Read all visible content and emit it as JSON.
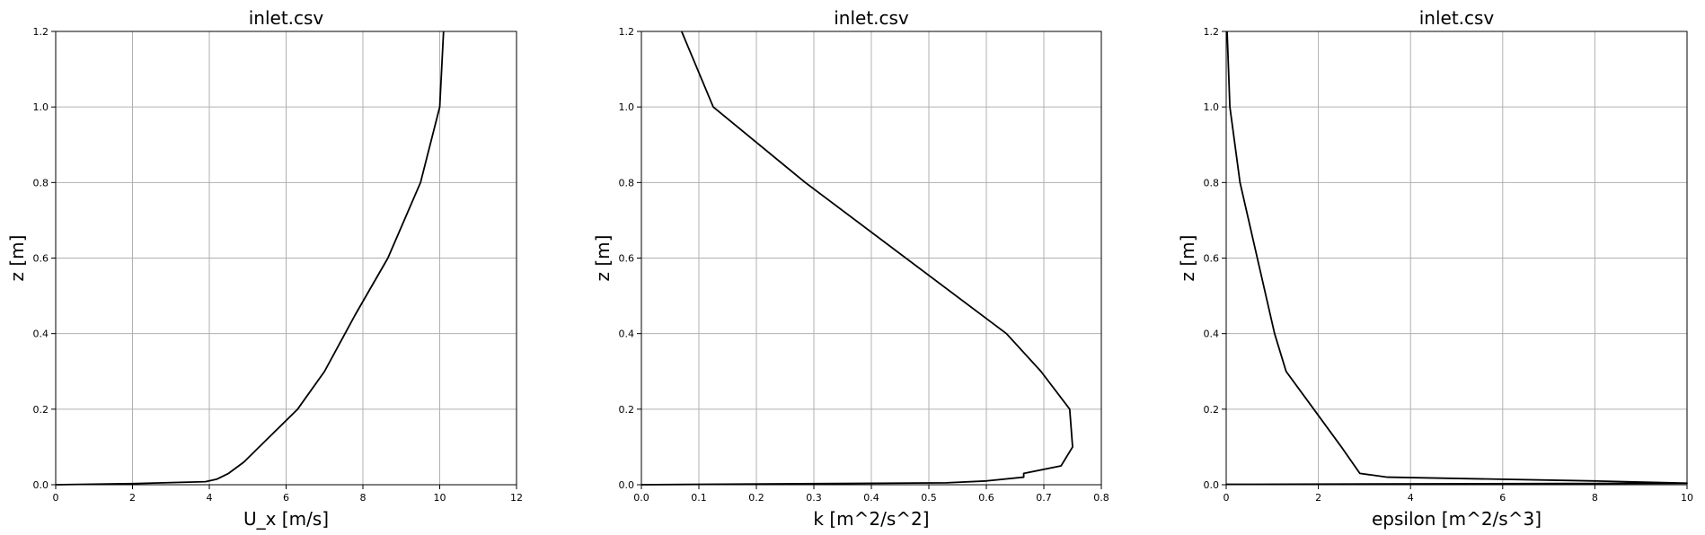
{
  "chart_data": [
    {
      "type": "line",
      "title": "inlet.csv",
      "xlabel": "U_x [m/s]",
      "ylabel": "z [m]",
      "xlim": [
        0,
        12
      ],
      "ylim": [
        0,
        1.2
      ],
      "xticks": [
        0,
        2,
        4,
        6,
        8,
        10,
        12
      ],
      "xtick_labels": [
        "0",
        "2",
        "4",
        "6",
        "8",
        "10",
        "12"
      ],
      "yticks": [
        0,
        0.2,
        0.4,
        0.6,
        0.8,
        1.0,
        1.2
      ],
      "ytick_labels": [
        "0.0",
        "0.2",
        "0.4",
        "0.6",
        "0.8",
        "1.0",
        "1.2"
      ],
      "grid": true,
      "series": [
        {
          "x": [
            0,
            2,
            3.9,
            4.2,
            4.5,
            4.9,
            5.3,
            6.3,
            7.0,
            7.8,
            8.65,
            9.5,
            10.0,
            10.05,
            10.1
          ],
          "y": [
            0,
            0.003,
            0.008,
            0.015,
            0.03,
            0.06,
            0.1,
            0.2,
            0.3,
            0.45,
            0.6,
            0.8,
            1.0,
            1.1,
            1.2
          ]
        }
      ]
    },
    {
      "type": "line",
      "title": "inlet.csv",
      "xlabel": "k [m^2/s^2]",
      "ylabel": "z [m]",
      "xlim": [
        0,
        0.8
      ],
      "ylim": [
        0,
        1.2
      ],
      "xticks": [
        0,
        0.1,
        0.2,
        0.3,
        0.4,
        0.5,
        0.6,
        0.7,
        0.8
      ],
      "xtick_labels": [
        "0.0",
        "0.1",
        "0.2",
        "0.3",
        "0.4",
        "0.5",
        "0.6",
        "0.7",
        "0.8"
      ],
      "yticks": [
        0,
        0.2,
        0.4,
        0.6,
        0.8,
        1.0,
        1.2
      ],
      "ytick_labels": [
        "0.0",
        "0.2",
        "0.4",
        "0.6",
        "0.8",
        "1.0",
        "1.2"
      ],
      "grid": true,
      "series": [
        {
          "x": [
            0,
            0.53,
            0.6,
            0.665,
            0.665,
            0.73,
            0.75,
            0.745,
            0.695,
            0.635,
            0.285,
            0.125,
            0.07
          ],
          "y": [
            0,
            0.005,
            0.01,
            0.02,
            0.03,
            0.05,
            0.1,
            0.2,
            0.3,
            0.4,
            0.8,
            1.0,
            1.2
          ]
        }
      ]
    },
    {
      "type": "line",
      "title": "inlet.csv",
      "xlabel": "epsilon [m^2/s^3]",
      "ylabel": "z [m]",
      "xlim": [
        0,
        10
      ],
      "ylim": [
        0,
        1.2
      ],
      "xticks": [
        0,
        2,
        4,
        6,
        8,
        10
      ],
      "xtick_labels": [
        "0",
        "2",
        "4",
        "6",
        "8",
        "10"
      ],
      "yticks": [
        0,
        0.2,
        0.4,
        0.6,
        0.8,
        1.0,
        1.2
      ],
      "ytick_labels": [
        "0.0",
        "0.2",
        "0.4",
        "0.6",
        "0.8",
        "1.0",
        "1.2"
      ],
      "grid": true,
      "series": [
        {
          "x": [
            0,
            10,
            8,
            3.5,
            2.9,
            2.5,
            1.9,
            1.3,
            1.05,
            0.3,
            0.08,
            0.02
          ],
          "y": [
            0.001,
            0.004,
            0.01,
            0.02,
            0.03,
            0.1,
            0.2,
            0.3,
            0.4,
            0.8,
            1.0,
            1.2
          ]
        }
      ]
    }
  ]
}
